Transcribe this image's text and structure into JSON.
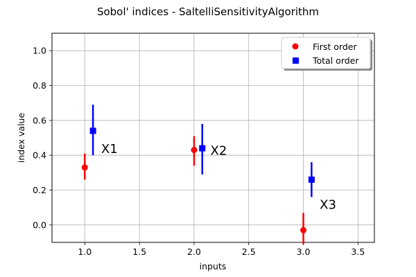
{
  "chart_data": {
    "type": "scatter",
    "title": "Sobol' indices - SaltelliSensitivityAlgorithm",
    "xlabel": "inputs",
    "ylabel": "index value",
    "xlim": [
      0.7,
      3.65
    ],
    "ylim": [
      -0.1,
      1.1
    ],
    "xticks": [
      1.0,
      1.5,
      2.0,
      2.5,
      3.0,
      3.5
    ],
    "xtick_labels": [
      "1.0",
      "1.5",
      "2.0",
      "2.5",
      "3.0",
      "3.5"
    ],
    "yticks": [
      0.0,
      0.2,
      0.4,
      0.6,
      0.8,
      1.0
    ],
    "ytick_labels": [
      "0.0",
      "0.2",
      "0.4",
      "0.6",
      "0.8",
      "1.0"
    ],
    "grid": true,
    "legend_position": "top-right",
    "series": [
      {
        "name": "First order",
        "marker": "circle",
        "color": "#ff0000",
        "x": [
          1.0,
          2.0,
          3.0
        ],
        "y": [
          0.33,
          0.43,
          -0.03
        ],
        "y_low": [
          0.26,
          0.34,
          -0.11
        ],
        "y_high": [
          0.41,
          0.51,
          0.07
        ]
      },
      {
        "name": "Total order",
        "marker": "square",
        "color": "#0000ff",
        "x": [
          1.075,
          2.075,
          3.075
        ],
        "y": [
          0.54,
          0.44,
          0.26
        ],
        "y_low": [
          0.4,
          0.29,
          0.16
        ],
        "y_high": [
          0.69,
          0.58,
          0.36
        ]
      }
    ],
    "annotations": [
      {
        "text": "X1",
        "x": 1.15,
        "y": 0.44
      },
      {
        "text": "X2",
        "x": 2.15,
        "y": 0.43
      },
      {
        "text": "X3",
        "x": 3.15,
        "y": 0.12
      }
    ]
  }
}
